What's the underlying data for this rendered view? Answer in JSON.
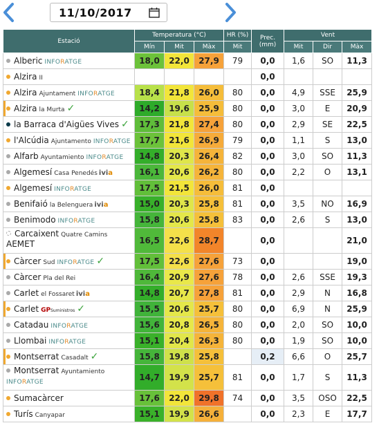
{
  "date": "11/10/2017",
  "header": {
    "estacio": "Estació",
    "temperatura": "Temperatura (°C)",
    "hr": "HR (%)",
    "prec": "Prec. (mm)",
    "vent": "Vent",
    "min": "Mín",
    "mit": "Mit",
    "max": "Màx",
    "hr_mit": "Mit",
    "vent_mit": "Mit",
    "vent_dir": "Dir",
    "vent_max": "Màx"
  },
  "colors": {
    "header": "#3f6d6d",
    "cold": "#4caf3a",
    "warm": "#f4e04a",
    "hot": "#f07c2a"
  },
  "rows": [
    {
      "name": "Alberic",
      "sub": "",
      "src": "inforatge",
      "check": false,
      "dot": "gray",
      "min": "18,0",
      "mit": "22,0",
      "max": "27,9",
      "hr": "79",
      "prec": "0,0",
      "vmit": "1,6",
      "dir": "SO",
      "vmax": "11,3",
      "minc": "#6cc23a",
      "mitc": "#f2e53a",
      "maxc": "#f6a23a"
    },
    {
      "name": "Alzira",
      "sub": "II",
      "src": "",
      "check": false,
      "dot": "orange",
      "min": "",
      "mit": "",
      "max": "",
      "hr": "",
      "prec": "0,0",
      "vmit": "",
      "dir": "",
      "vmax": "",
      "minc": "",
      "mitc": "",
      "maxc": ""
    },
    {
      "name": "Alzira",
      "sub": "Ajuntament",
      "src": "inforatge",
      "check": false,
      "dot": "orange",
      "min": "18,4",
      "mit": "21,8",
      "max": "26,0",
      "hr": "80",
      "prec": "0,0",
      "vmit": "4,9",
      "dir": "SSE",
      "vmax": "25,9",
      "minc": "#b8e14a",
      "mitc": "#f2e53a",
      "maxc": "#f5bd3a"
    },
    {
      "name": "Alzira",
      "sub": "la Murta",
      "src": "",
      "check": true,
      "dot": "orange",
      "min": "14,2",
      "mit": "19,6",
      "max": "25,9",
      "hr": "80",
      "prec": "0,0",
      "vmit": "3,0",
      "dir": "E",
      "vmax": "20,9",
      "minc": "#2eab2a",
      "mitc": "#c7e04a",
      "maxc": "#f5bd3a",
      "bar": true
    },
    {
      "name": "la Barraca d'Aigües Vives",
      "sub": "",
      "src": "",
      "check": true,
      "dot": "navy",
      "min": "17,3",
      "mit": "21,8",
      "max": "27,4",
      "hr": "80",
      "prec": "0,0",
      "vmit": "2,9",
      "dir": "SE",
      "vmax": "22,5",
      "minc": "#5fbd3a",
      "mitc": "#f2e53a",
      "maxc": "#f6a23a"
    },
    {
      "name": "l'Alcúdia",
      "sub": "Ajuntamento",
      "src": "inforatge",
      "check": false,
      "dot": "orange",
      "min": "17,7",
      "mit": "21,6",
      "max": "26,9",
      "hr": "79",
      "prec": "0,0",
      "vmit": "1,1",
      "dir": "S",
      "vmax": "13,0",
      "minc": "#6cc23a",
      "mitc": "#f2e53a",
      "maxc": "#f6ab3a"
    },
    {
      "name": "Alfarb",
      "sub": "Ayuntamiento",
      "src": "inforatge",
      "check": false,
      "dot": "gray",
      "min": "14,8",
      "mit": "20,3",
      "max": "26,4",
      "hr": "82",
      "prec": "0,0",
      "vmit": "3,0",
      "dir": "SO",
      "vmax": "11,3",
      "minc": "#34ae2a",
      "mitc": "#dfe64a",
      "maxc": "#f5b43a"
    },
    {
      "name": "Algemesí",
      "sub": "Casa Penedés",
      "src": "ivia",
      "check": false,
      "dot": "gray",
      "min": "16,1",
      "mit": "20,6",
      "max": "26,2",
      "hr": "80",
      "prec": "0,0",
      "vmit": "2,2",
      "dir": "O",
      "vmax": "13,1",
      "minc": "#4bb73a",
      "mitc": "#e4e74a",
      "maxc": "#f5b43a"
    },
    {
      "name": "Algemesí",
      "sub": "",
      "src": "inforatge",
      "check": false,
      "dot": "orange",
      "min": "17,5",
      "mit": "21,5",
      "max": "26,0",
      "hr": "81",
      "prec": "0,0",
      "vmit": "",
      "dir": "",
      "vmax": "",
      "minc": "#62bf3a",
      "mitc": "#f2e53a",
      "maxc": "#f5bd3a"
    },
    {
      "name": "Benifaió",
      "sub": "la Belenguera",
      "src": "ivia",
      "check": false,
      "dot": "gray",
      "min": "15,0",
      "mit": "20,3",
      "max": "25,8",
      "hr": "81",
      "prec": "0,0",
      "vmit": "3,5",
      "dir": "NO",
      "vmax": "16,9",
      "minc": "#38b02a",
      "mitc": "#dfe64a",
      "maxc": "#f5c03a"
    },
    {
      "name": "Benimodo",
      "sub": "",
      "src": "inforatge",
      "check": false,
      "dot": "gray",
      "min": "15,8",
      "mit": "20,6",
      "max": "25,8",
      "hr": "83",
      "prec": "0,0",
      "vmit": "2,6",
      "dir": "S",
      "vmax": "13,0",
      "minc": "#45b53a",
      "mitc": "#e4e74a",
      "maxc": "#f5c03a"
    },
    {
      "name": "Carcaixent",
      "sub": "Quatre Camins",
      "src": "aemet",
      "check": false,
      "dot": "dashed",
      "min": "16,5",
      "mit": "22,6",
      "max": "28,7",
      "hr": "",
      "prec": "0,0",
      "vmit": "",
      "dir": "",
      "vmax": "21,0",
      "minc": "#50b93a",
      "mitc": "#f4e04a",
      "maxc": "#f2852a",
      "tall": true
    },
    {
      "name": "Càrcer",
      "sub": "Sud",
      "src": "inforatge",
      "check": true,
      "dot": "orange",
      "min": "17,5",
      "mit": "22,6",
      "max": "27,6",
      "hr": "73",
      "prec": "0,0",
      "vmit": "",
      "dir": "",
      "vmax": "19,0",
      "minc": "#62bf3a",
      "mitc": "#f4e04a",
      "maxc": "#f6a23a",
      "bar": true
    },
    {
      "name": "Càrcer",
      "sub": "Pla del Rei",
      "src": "",
      "check": false,
      "dot": "gray",
      "min": "16,4",
      "mit": "20,9",
      "max": "27,6",
      "hr": "78",
      "prec": "0,0",
      "vmit": "2,6",
      "dir": "SSE",
      "vmax": "19,3",
      "minc": "#4fb83a",
      "mitc": "#e9e84a",
      "maxc": "#f6a23a"
    },
    {
      "name": "Carlet",
      "sub": "el Fossaret",
      "src": "ivia",
      "check": false,
      "dot": "gray",
      "min": "14,8",
      "mit": "20,7",
      "max": "27,8",
      "hr": "81",
      "prec": "0,0",
      "vmit": "2,9",
      "dir": "N",
      "vmax": "16,8",
      "minc": "#34ae2a",
      "mitc": "#e6e74a",
      "maxc": "#f6a23a"
    },
    {
      "name": "Carlet",
      "sub": "",
      "src": "gp",
      "check": true,
      "dot": "orange",
      "min": "15,5",
      "mit": "20,6",
      "max": "25,7",
      "hr": "80",
      "prec": "0,0",
      "vmit": "6,9",
      "dir": "N",
      "vmax": "25,9",
      "minc": "#40b33a",
      "mitc": "#e4e74a",
      "maxc": "#f5c03a",
      "bar": true
    },
    {
      "name": "Catadau",
      "sub": "",
      "src": "inforatge",
      "check": false,
      "dot": "gray",
      "min": "15,6",
      "mit": "20,8",
      "max": "26,5",
      "hr": "80",
      "prec": "0,0",
      "vmit": "2,0",
      "dir": "SO",
      "vmax": "10,0",
      "minc": "#42b43a",
      "mitc": "#e7e84a",
      "maxc": "#f5b43a"
    },
    {
      "name": "Llombai",
      "sub": "",
      "src": "inforatge",
      "check": false,
      "dot": "gray",
      "min": "15,1",
      "mit": "20,4",
      "max": "26,3",
      "hr": "80",
      "prec": "0,0",
      "vmit": "1,9",
      "dir": "SO",
      "vmax": "10,0",
      "minc": "#3ab12a",
      "mitc": "#e1e64a",
      "maxc": "#f5b43a"
    },
    {
      "name": "Montserrat",
      "sub": "Casadalt",
      "src": "",
      "check": true,
      "dot": "orange",
      "min": "15,8",
      "mit": "19,8",
      "max": "25,8",
      "hr": "",
      "prec": "0,2",
      "vmit": "6,6",
      "dir": "O",
      "vmax": "25,7",
      "minc": "#45b53a",
      "mitc": "#cfe14a",
      "maxc": "#f5c03a",
      "bar": true,
      "prechl": true
    },
    {
      "name": "Montserrat",
      "sub": "Ayuntamiento",
      "src": "inforatge",
      "check": false,
      "dot": "gray",
      "min": "14,7",
      "mit": "19,9",
      "max": "25,7",
      "hr": "81",
      "prec": "0,0",
      "vmit": "1,7",
      "dir": "S",
      "vmax": "11,3",
      "minc": "#32ad2a",
      "mitc": "#d3e24a",
      "maxc": "#f5c03a",
      "tall": true
    },
    {
      "name": "Sumacàrcer",
      "sub": "",
      "src": "",
      "check": false,
      "dot": "orange",
      "min": "17,6",
      "mit": "22,0",
      "max": "29,8",
      "hr": "74",
      "prec": "0,0",
      "vmit": "3,5",
      "dir": "OSO",
      "vmax": "22,5",
      "minc": "#68c13a",
      "mitc": "#f2e53a",
      "maxc": "#f0722a"
    },
    {
      "name": "Turís",
      "sub": "Canyapar",
      "src": "",
      "check": false,
      "dot": "orange",
      "min": "15,1",
      "mit": "19,9",
      "max": "26,6",
      "hr": "",
      "prec": "0,0",
      "vmit": "2,3",
      "dir": "E",
      "vmax": "17,7",
      "minc": "#3ab12a",
      "mitc": "#d3e24a",
      "maxc": "#f5b03a"
    }
  ],
  "labels": {
    "inforatge_a": "INFO",
    "inforatge_b": "RATGE",
    "ivia_a": "ivi",
    "ivia_b": "a",
    "gp_a": "GP",
    "gp_b": "Suministros",
    "aemet": "AEMET",
    "check": "✓"
  }
}
